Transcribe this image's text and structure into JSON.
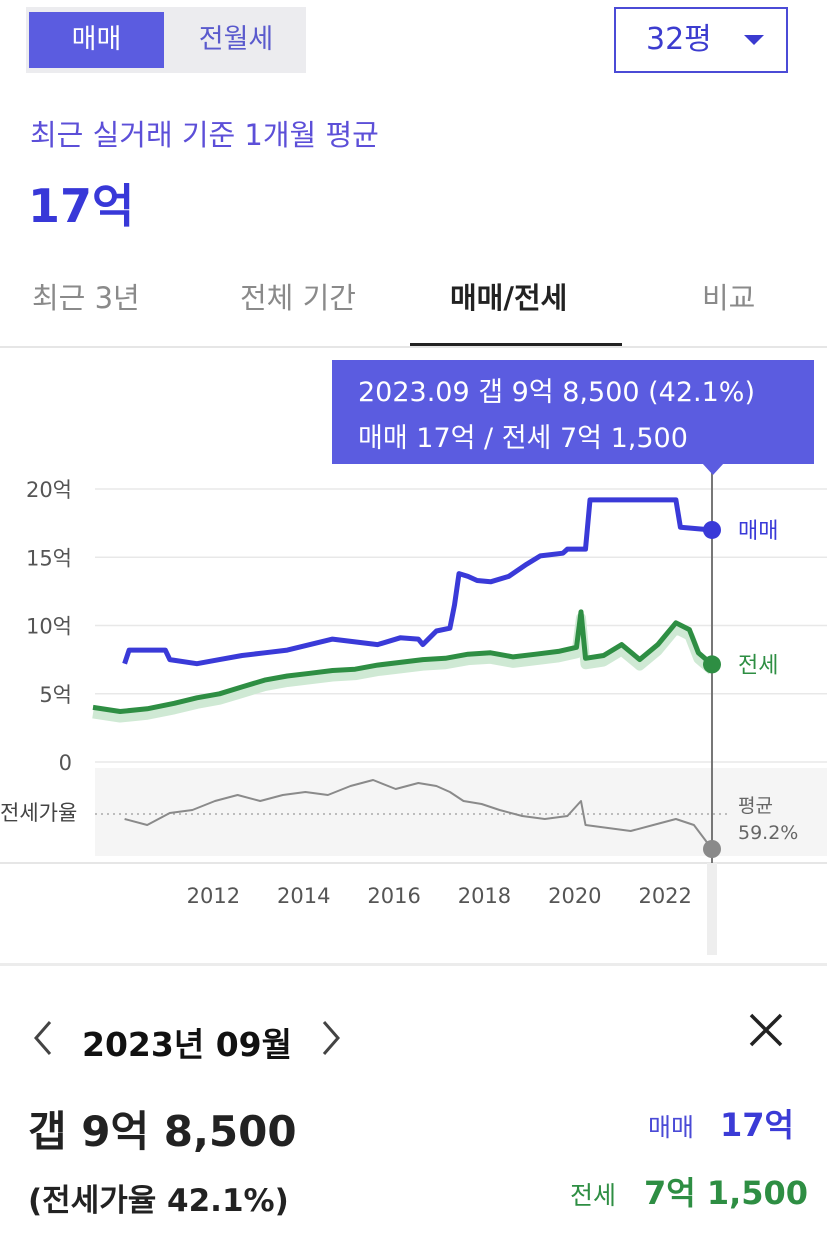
{
  "toggle": {
    "active": "매매",
    "inactive": "전월세"
  },
  "dropdown": {
    "selected": "32평",
    "icon": "chevron-down-icon"
  },
  "summary": {
    "subtitle": "최근 실거래 기준 1개월 평균",
    "price": "17억"
  },
  "tabs": [
    {
      "label": "최근 3년"
    },
    {
      "label": "전체 기간"
    },
    {
      "label": "매매/전세",
      "selected": true
    },
    {
      "label": "비교"
    }
  ],
  "tooltip": {
    "line1": "2023.09  갭 9억 8,500 (42.1%)",
    "line2": "매매 17억  / 전세 7억 1,500"
  },
  "chart_data": {
    "type": "line",
    "y_ticks": [
      "20억",
      "15억",
      "10억",
      "5억",
      "0"
    ],
    "x_ticks": [
      "2012",
      "2014",
      "2016",
      "2018",
      "2020",
      "2022"
    ],
    "series": [
      {
        "name": "매매",
        "color": "#3a3ad8",
        "points": [
          [
            2010.7,
            7.2
          ],
          [
            2010.8,
            8.2
          ],
          [
            2011.6,
            8.2
          ],
          [
            2011.7,
            7.5
          ],
          [
            2012.3,
            7.2
          ],
          [
            2012.8,
            7.5
          ],
          [
            2013.3,
            7.8
          ],
          [
            2013.8,
            8.0
          ],
          [
            2014.3,
            8.2
          ],
          [
            2014.8,
            8.6
          ],
          [
            2015.3,
            9.0
          ],
          [
            2015.8,
            8.8
          ],
          [
            2016.3,
            8.6
          ],
          [
            2016.8,
            9.1
          ],
          [
            2017.2,
            9.0
          ],
          [
            2017.3,
            8.6
          ],
          [
            2017.6,
            9.6
          ],
          [
            2017.9,
            9.8
          ],
          [
            2018.0,
            11.5
          ],
          [
            2018.1,
            13.8
          ],
          [
            2018.3,
            13.6
          ],
          [
            2018.5,
            13.3
          ],
          [
            2018.8,
            13.2
          ],
          [
            2019.2,
            13.6
          ],
          [
            2019.6,
            14.5
          ],
          [
            2019.9,
            15.1
          ],
          [
            2020.4,
            15.3
          ],
          [
            2020.5,
            15.6
          ],
          [
            2020.9,
            15.6
          ],
          [
            2021.0,
            19.2
          ],
          [
            2022.0,
            19.2
          ],
          [
            2022.9,
            19.2
          ],
          [
            2023.0,
            17.2
          ],
          [
            2023.7,
            17.0
          ]
        ]
      },
      {
        "name": "전세",
        "color": "#2e8e43",
        "points": [
          [
            2010.0,
            4.0
          ],
          [
            2010.6,
            3.7
          ],
          [
            2011.2,
            3.9
          ],
          [
            2011.8,
            4.3
          ],
          [
            2012.3,
            4.7
          ],
          [
            2012.8,
            5.0
          ],
          [
            2013.3,
            5.5
          ],
          [
            2013.8,
            6.0
          ],
          [
            2014.3,
            6.3
          ],
          [
            2014.8,
            6.5
          ],
          [
            2015.3,
            6.7
          ],
          [
            2015.8,
            6.8
          ],
          [
            2016.3,
            7.1
          ],
          [
            2016.8,
            7.3
          ],
          [
            2017.3,
            7.5
          ],
          [
            2017.8,
            7.6
          ],
          [
            2018.3,
            7.9
          ],
          [
            2018.8,
            8.0
          ],
          [
            2019.3,
            7.7
          ],
          [
            2019.8,
            7.9
          ],
          [
            2020.3,
            8.1
          ],
          [
            2020.7,
            8.4
          ],
          [
            2020.8,
            11.0
          ],
          [
            2020.9,
            7.6
          ],
          [
            2021.3,
            7.8
          ],
          [
            2021.7,
            8.6
          ],
          [
            2022.1,
            7.5
          ],
          [
            2022.5,
            8.6
          ],
          [
            2022.9,
            10.2
          ],
          [
            2023.2,
            9.7
          ],
          [
            2023.4,
            8.0
          ],
          [
            2023.7,
            7.15
          ]
        ]
      },
      {
        "name": "전세가율",
        "color": "#8a8a8a",
        "points": [
          [
            2010.7,
            52
          ],
          [
            2011.2,
            50
          ],
          [
            2011.7,
            54
          ],
          [
            2012.2,
            55
          ],
          [
            2012.7,
            58
          ],
          [
            2013.2,
            60
          ],
          [
            2013.7,
            58
          ],
          [
            2014.2,
            60
          ],
          [
            2014.7,
            61
          ],
          [
            2015.2,
            60
          ],
          [
            2015.7,
            63
          ],
          [
            2016.2,
            65
          ],
          [
            2016.7,
            62
          ],
          [
            2017.2,
            64
          ],
          [
            2017.6,
            63
          ],
          [
            2017.9,
            61
          ],
          [
            2018.2,
            58
          ],
          [
            2018.6,
            57
          ],
          [
            2019.0,
            55
          ],
          [
            2019.5,
            53
          ],
          [
            2020.0,
            52
          ],
          [
            2020.5,
            53
          ],
          [
            2020.8,
            58
          ],
          [
            2020.9,
            50
          ],
          [
            2021.4,
            49
          ],
          [
            2021.9,
            48
          ],
          [
            2022.4,
            50
          ],
          [
            2022.9,
            52
          ],
          [
            2023.3,
            50
          ],
          [
            2023.7,
            42
          ]
        ]
      }
    ],
    "right_labels": {
      "sale": "매매",
      "rent": "전세",
      "avg_title": "평균",
      "avg_value": "59.2%"
    },
    "ratio_label": "전세가율",
    "cursor_x": 2023.7
  },
  "detail": {
    "month": "2023년 09월",
    "gap": "갭 9억 8,500",
    "ratio": "(전세가율 42.1%)",
    "sale_label": "매매",
    "sale_value": "17억",
    "rent_label": "전세",
    "rent_value": "7억 1,500"
  }
}
